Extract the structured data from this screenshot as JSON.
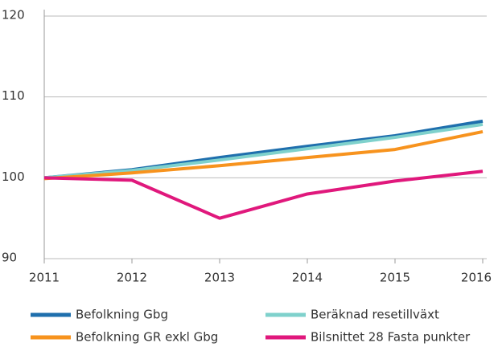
{
  "chart_data": {
    "type": "line",
    "x": [
      2011,
      2012,
      2013,
      2014,
      2015,
      2016
    ],
    "xlim": [
      2011,
      2016
    ],
    "xticks": [
      2011,
      2012,
      2013,
      2014,
      2015,
      2016
    ],
    "ylim": [
      90,
      120
    ],
    "yticks": [
      90,
      100,
      110,
      120
    ],
    "grid": true,
    "series": [
      {
        "name": "Befolkning Gbg",
        "color": "#1f6fad",
        "values": [
          100,
          101,
          102.5,
          103.9,
          105.2,
          107.0
        ]
      },
      {
        "name": "Beräknad resetillväxt",
        "color": "#7fd1cc",
        "values": [
          100,
          100.9,
          102.2,
          103.6,
          105.0,
          106.6
        ]
      },
      {
        "name": "Befolkning GR exkl Gbg",
        "color": "#f7931e",
        "values": [
          99.9,
          100.6,
          101.5,
          102.5,
          103.5,
          105.7
        ]
      },
      {
        "name": "Bilsnittet 28 Fasta punkter",
        "color": "#e0187c",
        "values": [
          100,
          99.7,
          95.0,
          98.0,
          99.6,
          100.8
        ]
      }
    ]
  }
}
